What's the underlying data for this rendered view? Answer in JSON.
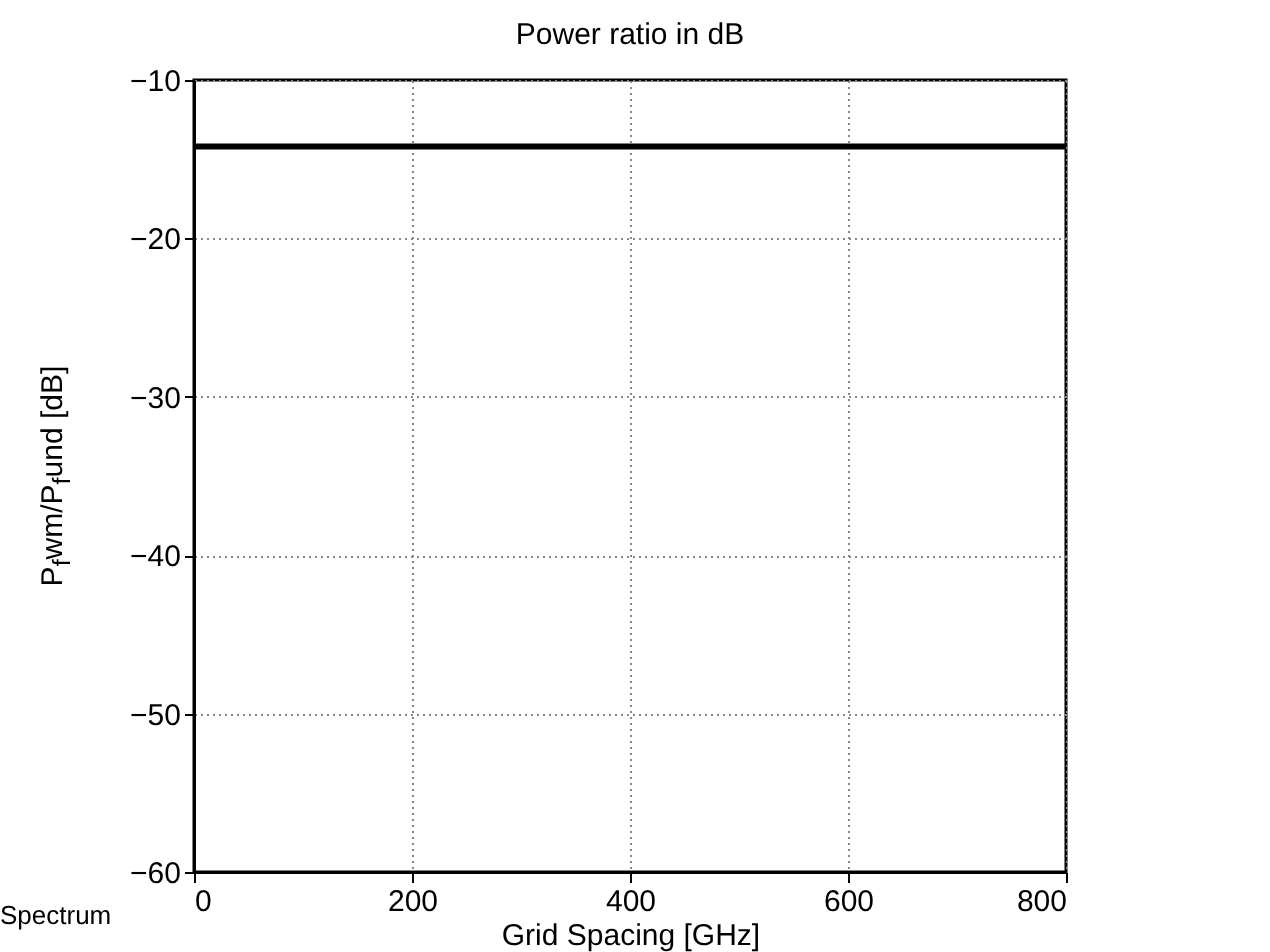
{
  "chart_data": {
    "type": "line",
    "title": "Power ratio in dB",
    "xlabel": "Grid Spacing [GHz]",
    "ylabel": "P$_{f}$wm/P$_{f}$und [dB]",
    "x": [
      0,
      800
    ],
    "series": [
      {
        "color": "#000000",
        "values": [
          -14.2,
          -14.2
        ]
      }
    ],
    "xlim": [
      0,
      800
    ],
    "xticks": [
      0,
      200,
      400,
      600,
      800
    ],
    "ylim": [
      -60,
      -10
    ],
    "yticks": [
      -60,
      -50,
      -40,
      -30,
      -20,
      -10
    ],
    "grid": true,
    "marker": "none",
    "line_style": "solid",
    "annotations": [
      "Spectrum"
    ]
  }
}
